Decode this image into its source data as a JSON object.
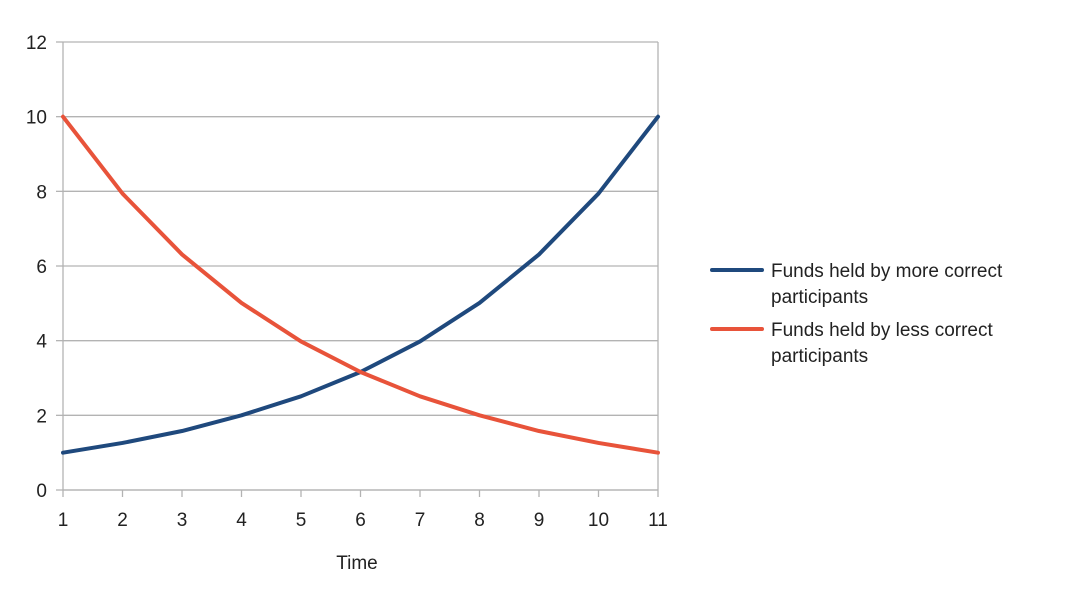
{
  "chart_data": {
    "type": "line",
    "x": [
      1,
      2,
      3,
      4,
      5,
      6,
      7,
      8,
      9,
      10,
      11
    ],
    "series": [
      {
        "name": "Funds held by more correct participants",
        "color": "#1f497d",
        "values": [
          1,
          1.26,
          1.58,
          2,
          2.51,
          3.16,
          3.98,
          5.01,
          6.31,
          7.94,
          10
        ]
      },
      {
        "name": "Funds held by less correct participants",
        "color": "#e8533a",
        "values": [
          10,
          7.94,
          6.31,
          5.01,
          3.98,
          3.16,
          2.51,
          2,
          1.58,
          1.26,
          1
        ]
      }
    ],
    "title": "",
    "xlabel": "Time",
    "ylabel": "",
    "xlim": [
      1,
      11
    ],
    "ylim": [
      0,
      12
    ],
    "yticks": [
      0,
      2,
      4,
      6,
      8,
      10,
      12
    ],
    "xticks": [
      1,
      2,
      3,
      4,
      5,
      6,
      7,
      8,
      9,
      10,
      11
    ],
    "grid": "horizontal",
    "legend_position": "right",
    "colors": {
      "grid": "#b3b3b3",
      "axis": "#b3b3b3"
    }
  }
}
